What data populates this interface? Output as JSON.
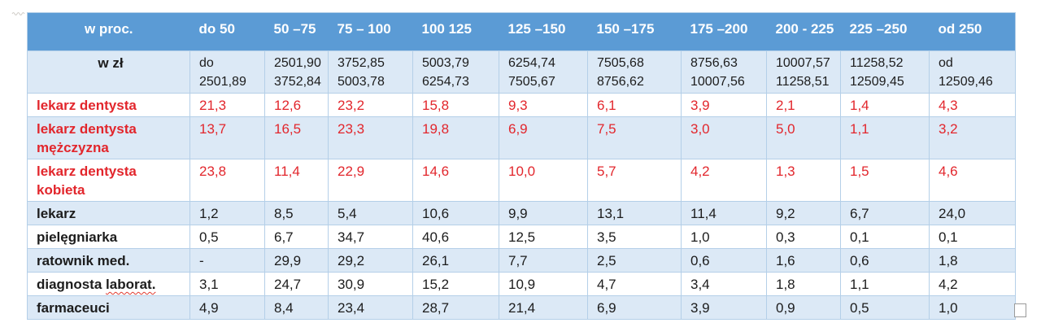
{
  "table": {
    "corner_percent_label": "w proc.",
    "corner_zl_label": "w zł",
    "percent_headers": [
      "do 50",
      "50 –75",
      "75 – 100",
      "100 125",
      "125 –150",
      "150 –175",
      "175 –200",
      "200 - 225",
      "225 –250",
      "od 250"
    ],
    "zl_ranges": [
      "do\n2501,89",
      "2501,90\n3752,84",
      "3752,85\n5003,78",
      "5003,79\n6254,73",
      "6254,74\n7505,67",
      "7505,68\n8756,62",
      "8756,63\n10007,56",
      "10007,57\n11258,51",
      "11258,52\n12509,45",
      "od 12509,46"
    ],
    "rows": [
      {
        "label": "lekarz dentysta",
        "emphasis": "red",
        "values": [
          "21,3",
          "12,6",
          "23,2",
          "15,8",
          "9,3",
          "6,1",
          "3,9",
          "2,1",
          "1,4",
          "4,3"
        ]
      },
      {
        "label": "lekarz dentysta mężczyzna",
        "emphasis": "red",
        "values": [
          "13,7",
          "16,5",
          "23,3",
          "19,8",
          "6,9",
          "7,5",
          "3,0",
          "5,0",
          "1,1",
          "3,2"
        ]
      },
      {
        "label": "lekarz dentysta kobieta",
        "emphasis": "red",
        "values": [
          "23,8",
          "11,4",
          "22,9",
          "14,6",
          "10,0",
          "5,7",
          "4,2",
          "1,3",
          "1,5",
          "4,6"
        ]
      },
      {
        "label": "lekarz",
        "emphasis": "black",
        "values": [
          "1,2",
          "8,5",
          "5,4",
          "10,6",
          "9,9",
          "13,1",
          "11,4",
          "9,2",
          "6,7",
          "24,0"
        ]
      },
      {
        "label": "pielęgniarka",
        "emphasis": "black",
        "values": [
          "0,5",
          "6,7",
          "34,7",
          "40,6",
          "12,5",
          "3,5",
          "1,0",
          "0,3",
          "0,1",
          "0,1"
        ]
      },
      {
        "label": "ratownik med.",
        "emphasis": "black",
        "values": [
          "-",
          "29,9",
          "29,2",
          "26,1",
          "7,7",
          "2,5",
          "0,6",
          "1,6",
          "0,6",
          "1,8"
        ]
      },
      {
        "label": "diagnosta laborat.",
        "emphasis": "black",
        "spellcheck_suffix": "laborat.",
        "values": [
          "3,1",
          "24,7",
          "30,9",
          "15,2",
          "10,9",
          "4,7",
          "3,4",
          "1,8",
          "1,1",
          "4,2"
        ]
      },
      {
        "label": "farmaceuci",
        "emphasis": "black",
        "values": [
          "4,9",
          "8,4",
          "23,4",
          "28,7",
          "21,4",
          "6,9",
          "3,9",
          "0,9",
          "0,5",
          "1,0"
        ]
      }
    ]
  },
  "colors": {
    "header_bg": "#5b9bd5",
    "band_bg": "#dce9f6",
    "border": "#b4cfe8",
    "red_text": "#e2262c",
    "black_text": "#1c1c1c",
    "header_text": "#ffffff"
  }
}
